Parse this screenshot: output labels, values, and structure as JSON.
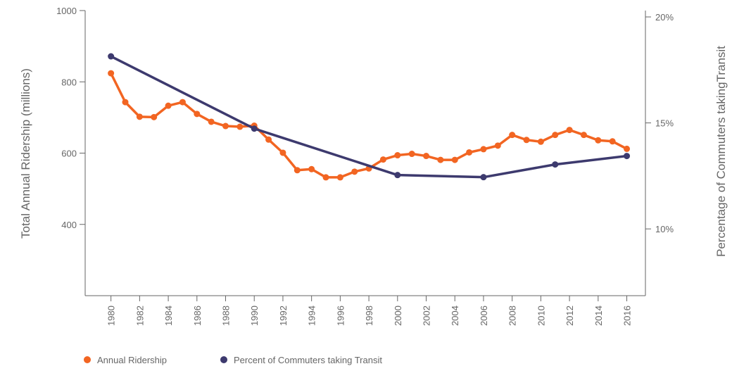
{
  "chart_data": {
    "type": "line",
    "y_label": "Total Annual Ridership (millions)",
    "y2_label": "Percentage of Commuters takingTransit",
    "xlim": [
      1978.2,
      2017.3
    ],
    "xticks": [
      1980,
      1982,
      1984,
      1986,
      1988,
      1990,
      1992,
      1994,
      1996,
      1998,
      2000,
      2002,
      2004,
      2006,
      2008,
      2010,
      2012,
      2014,
      2016
    ],
    "ylim": [
      200,
      1000
    ],
    "yticks": [
      400,
      600,
      800,
      1000
    ],
    "y2lim": [
      6.85,
      20.3
    ],
    "y2ticks": [
      {
        "value": 10,
        "label": "10%"
      },
      {
        "value": 15,
        "label": "15%"
      },
      {
        "value": 20,
        "label": "20%"
      }
    ],
    "legend": "bottom-left",
    "series": [
      {
        "name": "Annual Ridership",
        "color": "#f26522",
        "x": [
          1980,
          1981,
          1982,
          1983,
          1984,
          1985,
          1986,
          1987,
          1988,
          1989,
          1990,
          1991,
          1992,
          1993,
          1994,
          1995,
          1996,
          1997,
          1998,
          1999,
          2000,
          2001,
          2002,
          2003,
          2004,
          2005,
          2006,
          2007,
          2008,
          2009,
          2010,
          2011,
          2012,
          2013,
          2014,
          2015,
          2016
        ],
        "values": [
          824,
          743,
          702,
          701,
          733,
          743,
          710,
          688,
          676,
          674,
          677,
          638,
          601,
          552,
          555,
          532,
          532,
          548,
          557,
          582,
          594,
          598,
          592,
          581,
          581,
          602,
          611,
          621,
          651,
          637,
          632,
          651,
          665,
          651,
          636,
          633,
          612
        ]
      },
      {
        "name": "Percent of Commuters taking Transit",
        "color": "#3d3a6e",
        "axis": "y2",
        "x": [
          1980,
          1990,
          2000,
          2006,
          2011,
          2016
        ],
        "values": [
          18.14,
          14.73,
          12.54,
          12.44,
          13.04,
          13.44
        ]
      }
    ]
  }
}
